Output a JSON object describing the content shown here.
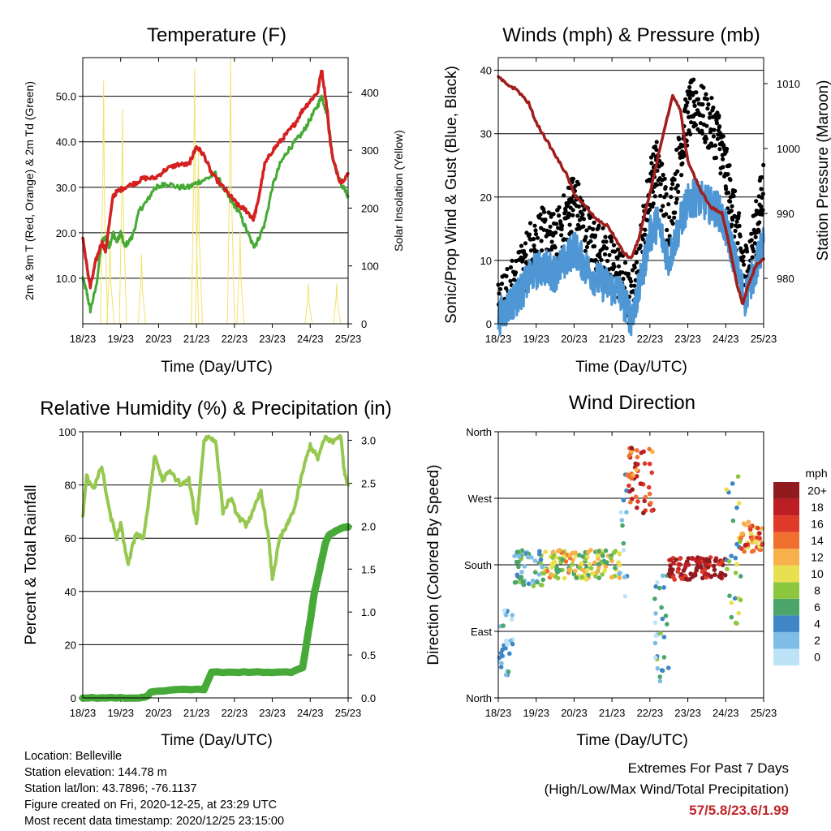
{
  "footer": {
    "location": "Location: Belleville",
    "elevation": "Station elevation: 144.78 m",
    "latlon": "Station lat/lon: 43.7896; -76.1137",
    "created": "Figure created on Fri, 2020-12-25, at 23:29 UTC",
    "recent": "Most recent data timestamp: 2020/12/25 23:15:00"
  },
  "extremes": {
    "line1": "Extremes For Past 7 Days",
    "line2": "(High/Low/Max Wind/Total Precipitation)",
    "values": "57/5.8/23.6/1.99"
  },
  "time_ticks": [
    "18/23",
    "19/23",
    "20/23",
    "21/23",
    "22/23",
    "23/23",
    "24/23",
    "25/23"
  ],
  "colors": {
    "temp": "#d42020",
    "dewpoint": "#44aa33",
    "solar": "#f2e26a",
    "gust": "#000000",
    "wind": "#4f97d4",
    "pressure": "#a01e1e",
    "rh": "#96c850",
    "precip": "#46a938"
  },
  "chart_data": [
    {
      "id": "temperature",
      "type": "line",
      "title": "Temperature (F)",
      "xlabel": "Time (Day/UTC)",
      "ylabel": "2m & 9m T (Red, Orange) & 2m Td (Green)",
      "y2label": "Solar Insolation (Yellow)",
      "xlim": [
        0,
        7
      ],
      "ylim": [
        0,
        58.5
      ],
      "y2lim": [
        0,
        460
      ],
      "yticks": [
        10,
        20,
        30,
        40,
        50
      ],
      "ytick_labels": [
        "10.0",
        "20.0",
        "30.0",
        "40.0",
        "50.0"
      ],
      "y2ticks": [
        0,
        100,
        200,
        300,
        400
      ],
      "y2tick_labels": [
        "0",
        "100",
        "200",
        "300",
        "400"
      ],
      "series": [
        {
          "key": "temp",
          "x": [
            0,
            0.1,
            0.2,
            0.35,
            0.5,
            0.6,
            0.8,
            0.9,
            1.1,
            1.4,
            1.6,
            1.9,
            2.2,
            2.5,
            2.8,
            2.9,
            3.0,
            3.2,
            3.4,
            3.7,
            3.9,
            4.1,
            4.3,
            4.5,
            4.6,
            4.8,
            5.0,
            5.2,
            5.4,
            5.6,
            5.8,
            6.0,
            6.2,
            6.3,
            6.45,
            6.5,
            6.6,
            6.8,
            7.0
          ],
          "y": [
            19,
            13,
            8,
            14,
            18,
            16,
            28,
            29,
            30,
            31,
            32,
            32,
            34,
            35,
            35,
            37,
            39,
            37,
            33,
            30,
            28,
            26,
            25,
            23,
            26,
            35,
            38,
            40,
            42,
            44,
            47,
            49,
            51,
            56,
            47,
            42,
            36,
            31,
            33
          ]
        },
        {
          "key": "dewpoint",
          "x": [
            0,
            0.1,
            0.2,
            0.35,
            0.5,
            0.6,
            0.7,
            0.8,
            0.9,
            1.0,
            1.1,
            1.3,
            1.5,
            1.7,
            1.9,
            2.0,
            2.2,
            2.5,
            2.8,
            3.0,
            3.3,
            3.5,
            3.7,
            3.9,
            4.1,
            4.3,
            4.5,
            4.6,
            4.8,
            5.0,
            5.2,
            5.4,
            5.6,
            5.8,
            6.0,
            6.2,
            6.3,
            6.45,
            6.5,
            6.6,
            6.8,
            7.0
          ],
          "y": [
            10,
            7,
            3,
            8,
            18,
            19,
            17,
            20,
            18,
            20,
            17,
            19,
            25,
            27,
            30,
            30,
            31,
            30,
            30,
            31,
            32,
            33,
            30,
            27,
            25,
            21,
            17,
            18,
            22,
            30,
            35,
            38,
            40,
            42,
            45,
            48,
            50,
            46,
            43,
            36,
            31,
            28
          ]
        },
        {
          "key": "solar",
          "peaks": [
            {
              "x": 0.55,
              "y": 420
            },
            {
              "x": 0.72,
              "y": 140
            },
            {
              "x": 1.05,
              "y": 370
            },
            {
              "x": 1.55,
              "y": 120
            },
            {
              "x": 2.95,
              "y": 440
            },
            {
              "x": 3.05,
              "y": 300
            },
            {
              "x": 3.9,
              "y": 460
            },
            {
              "x": 4.15,
              "y": 160
            },
            {
              "x": 5.95,
              "y": 70
            },
            {
              "x": 6.7,
              "y": 70
            }
          ]
        }
      ]
    },
    {
      "id": "winds",
      "type": "line",
      "title": "Winds (mph) & Pressure (mb)",
      "xlabel": "Time (Day/UTC)",
      "ylabel": "Sonic/Prop Wind & Gust (Blue, Black)",
      "y2label": "Station Pressure (Maroon)",
      "xlim": [
        0,
        7
      ],
      "ylim": [
        0,
        42
      ],
      "y2lim": [
        973,
        1014
      ],
      "yticks": [
        0,
        10,
        20,
        30,
        40
      ],
      "ytick_labels": [
        "0",
        "10",
        "20",
        "30",
        "40"
      ],
      "y2ticks": [
        980,
        990,
        1000,
        1010
      ],
      "y2tick_labels": [
        "980",
        "990",
        "1000",
        "1010"
      ],
      "series": [
        {
          "key": "gust",
          "x": [
            0,
            0.3,
            0.6,
            0.9,
            1.2,
            1.5,
            1.8,
            2.0,
            2.3,
            2.6,
            2.9,
            3.2,
            3.5,
            3.7,
            4.0,
            4.2,
            4.5,
            4.8,
            5.0,
            5.2,
            5.5,
            5.8,
            6.0,
            6.2,
            6.5,
            6.8,
            7.0
          ],
          "y": [
            3,
            5,
            8,
            13,
            14,
            13,
            17,
            20,
            15,
            12,
            10,
            8,
            3,
            9,
            22,
            25,
            16,
            27,
            33,
            35,
            32,
            30,
            24,
            18,
            8,
            15,
            22
          ]
        },
        {
          "key": "wind",
          "x": [
            0,
            0.3,
            0.6,
            0.9,
            1.2,
            1.5,
            1.8,
            2.0,
            2.3,
            2.6,
            2.9,
            3.2,
            3.5,
            3.7,
            4.0,
            4.2,
            4.5,
            4.8,
            5.0,
            5.2,
            5.5,
            5.8,
            6.0,
            6.2,
            6.5,
            6.8,
            7.0
          ],
          "y": [
            1,
            3,
            5,
            8,
            9,
            8,
            10,
            12,
            9,
            7,
            6,
            5,
            1,
            5,
            14,
            16,
            10,
            16,
            19,
            20,
            19,
            18,
            15,
            11,
            4,
            9,
            13
          ]
        },
        {
          "key": "pressure",
          "x": [
            0,
            0.2,
            0.5,
            0.8,
            1.0,
            1.3,
            1.6,
            1.8,
            2.0,
            2.3,
            2.6,
            2.9,
            3.1,
            3.3,
            3.5,
            3.7,
            4.0,
            4.3,
            4.6,
            4.8,
            5.0,
            5.3,
            5.6,
            5.9,
            6.1,
            6.3,
            6.45,
            6.6,
            6.8,
            7.0
          ],
          "y": [
            1011,
            1010,
            1009,
            1007,
            1004,
            1001,
            998,
            996,
            993,
            991,
            989,
            988,
            986,
            984,
            983,
            986,
            993,
            1001,
            1008,
            1006,
            998,
            994,
            991,
            990,
            985,
            979,
            976,
            979,
            982,
            983
          ]
        }
      ]
    },
    {
      "id": "humidity",
      "type": "line",
      "title": "Relative Humidity (%) & Precipitation (in)",
      "xlabel": "Time (Day/UTC)",
      "ylabel": "Percent & Total Rainfall",
      "xlim": [
        0,
        7
      ],
      "ylim": [
        0,
        100
      ],
      "y2lim": [
        0,
        3.1
      ],
      "yticks": [
        0,
        20,
        40,
        60,
        80,
        100
      ],
      "ytick_labels": [
        "0",
        "20",
        "40",
        "60",
        "80",
        "100"
      ],
      "y2ticks": [
        0,
        0.5,
        1.0,
        1.5,
        2.0,
        2.5,
        3.0
      ],
      "y2tick_labels": [
        "0.0",
        "0.5",
        "1.0",
        "1.5",
        "2.0",
        "2.5",
        "3.0"
      ],
      "series": [
        {
          "key": "rh",
          "x": [
            0,
            0.1,
            0.3,
            0.5,
            0.7,
            0.9,
            1.0,
            1.2,
            1.4,
            1.6,
            1.8,
            1.9,
            2.1,
            2.3,
            2.6,
            2.8,
            3.0,
            3.2,
            3.3,
            3.5,
            3.7,
            3.9,
            4.1,
            4.3,
            4.5,
            4.7,
            4.9,
            5.0,
            5.2,
            5.4,
            5.6,
            5.8,
            6.0,
            6.2,
            6.4,
            6.6,
            6.8,
            6.9,
            7.0
          ],
          "y": [
            68,
            83,
            79,
            87,
            70,
            60,
            65,
            50,
            62,
            60,
            80,
            91,
            82,
            85,
            80,
            82,
            65,
            97,
            98,
            97,
            70,
            75,
            68,
            65,
            70,
            78,
            60,
            45,
            60,
            65,
            72,
            85,
            95,
            90,
            98,
            96,
            99,
            85,
            80
          ]
        },
        {
          "key": "precip",
          "x": [
            0,
            0.5,
            1.0,
            1.5,
            1.7,
            1.8,
            2.5,
            3.2,
            3.3,
            3.4,
            4.0,
            4.5,
            5.0,
            5.5,
            5.8,
            6.0,
            6.1,
            6.2,
            6.3,
            6.4,
            6.5,
            6.7,
            6.9,
            7.0
          ],
          "y": [
            0,
            0,
            0,
            0,
            0.02,
            0.07,
            0.1,
            0.1,
            0.2,
            0.3,
            0.3,
            0.3,
            0.3,
            0.3,
            0.35,
            0.9,
            1.2,
            1.4,
            1.6,
            1.8,
            1.9,
            1.95,
            1.99,
            1.99
          ]
        }
      ]
    },
    {
      "id": "direction",
      "type": "scatter",
      "title": "Wind Direction",
      "xlabel": "Time (Day/UTC)",
      "ylabel": "Direction (Colored By Speed)",
      "xlim": [
        0,
        7
      ],
      "ylim": [
        0,
        360
      ],
      "yticks": [
        0,
        90,
        180,
        270,
        360
      ],
      "ytick_labels": [
        "North",
        "East",
        "South",
        "West",
        "North"
      ],
      "colorbar": {
        "title": "mph",
        "labels": [
          "0",
          "2",
          "4",
          "6",
          "8",
          "10",
          "12",
          "14",
          "16",
          "18",
          "20+"
        ],
        "colors": [
          "#bde3f6",
          "#7fbde6",
          "#3f86c6",
          "#4aa66b",
          "#8dc63f",
          "#e8e050",
          "#f7b04a",
          "#f07030",
          "#e03a2a",
          "#bb1e24",
          "#911a1f"
        ]
      },
      "clusters": [
        {
          "x0": 0.0,
          "x1": 0.4,
          "d0": 30,
          "d1": 120,
          "spd": 2
        },
        {
          "x0": 0.4,
          "x1": 1.2,
          "d0": 150,
          "d1": 200,
          "spd": 5
        },
        {
          "x0": 1.2,
          "x1": 2.0,
          "d0": 160,
          "d1": 200,
          "spd": 10
        },
        {
          "x0": 2.0,
          "x1": 3.2,
          "d0": 160,
          "d1": 200,
          "spd": 9
        },
        {
          "x0": 3.2,
          "x1": 3.4,
          "d0": 100,
          "d1": 330,
          "spd": 3
        },
        {
          "x0": 3.4,
          "x1": 4.1,
          "d0": 250,
          "d1": 340,
          "spd": 16
        },
        {
          "x0": 4.1,
          "x1": 4.5,
          "d0": 20,
          "d1": 180,
          "spd": 4
        },
        {
          "x0": 4.5,
          "x1": 6.0,
          "d0": 160,
          "d1": 190,
          "spd": 19
        },
        {
          "x0": 6.0,
          "x1": 6.4,
          "d0": 100,
          "d1": 300,
          "spd": 7
        },
        {
          "x0": 6.4,
          "x1": 7.0,
          "d0": 195,
          "d1": 240,
          "spd": 14
        }
      ]
    }
  ]
}
